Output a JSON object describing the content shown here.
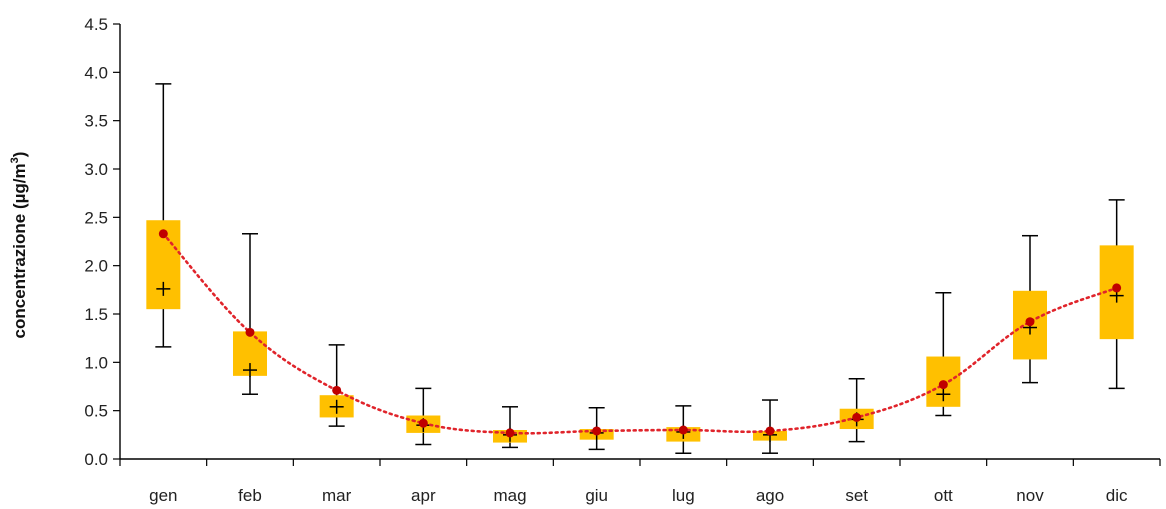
{
  "chart_data": {
    "type": "box",
    "categories": [
      "gen",
      "feb",
      "mar",
      "apr",
      "mag",
      "giu",
      "lug",
      "ago",
      "set",
      "ott",
      "nov",
      "dic"
    ],
    "ylabel": {
      "main": "concentrazione (µg/m",
      "sup": "3",
      "close": ")"
    },
    "ylim": [
      0,
      4.5
    ],
    "yticks": [
      "0.0",
      "0.5",
      "1.0",
      "1.5",
      "2.0",
      "2.5",
      "3.0",
      "3.5",
      "4.0",
      "4.5"
    ],
    "grid": false,
    "legend": "none",
    "boxes": [
      {
        "min": 1.16,
        "q1": 1.55,
        "median": 1.76,
        "q3": 2.47,
        "max": 3.88,
        "mean": 2.33
      },
      {
        "min": 0.67,
        "q1": 0.86,
        "median": 0.92,
        "q3": 1.32,
        "max": 2.33,
        "mean": 1.31
      },
      {
        "min": 0.34,
        "q1": 0.43,
        "median": 0.54,
        "q3": 0.66,
        "max": 1.18,
        "mean": 0.71
      },
      {
        "min": 0.15,
        "q1": 0.27,
        "median": 0.35,
        "q3": 0.45,
        "max": 0.73,
        "mean": 0.37
      },
      {
        "min": 0.12,
        "q1": 0.17,
        "median": 0.25,
        "q3": 0.3,
        "max": 0.54,
        "mean": 0.27
      },
      {
        "min": 0.1,
        "q1": 0.2,
        "median": 0.27,
        "q3": 0.31,
        "max": 0.53,
        "mean": 0.29
      },
      {
        "min": 0.06,
        "q1": 0.18,
        "median": 0.28,
        "q3": 0.33,
        "max": 0.55,
        "mean": 0.3
      },
      {
        "min": 0.06,
        "q1": 0.19,
        "median": 0.25,
        "q3": 0.29,
        "max": 0.61,
        "mean": 0.29
      },
      {
        "min": 0.18,
        "q1": 0.31,
        "median": 0.41,
        "q3": 0.52,
        "max": 0.83,
        "mean": 0.43
      },
      {
        "min": 0.45,
        "q1": 0.54,
        "median": 0.67,
        "q3": 1.06,
        "max": 1.72,
        "mean": 0.77
      },
      {
        "min": 0.79,
        "q1": 1.03,
        "median": 1.36,
        "q3": 1.74,
        "max": 2.31,
        "mean": 1.42
      },
      {
        "min": 0.73,
        "q1": 1.24,
        "median": 1.69,
        "q3": 2.21,
        "max": 2.68,
        "mean": 1.77
      }
    ],
    "colors": {
      "box": "#ffc000",
      "whisker": "#000000",
      "median_marker": "#000000",
      "mean_marker": "#c00000",
      "mean_line": "#e0242b",
      "axis": "#000000"
    }
  }
}
